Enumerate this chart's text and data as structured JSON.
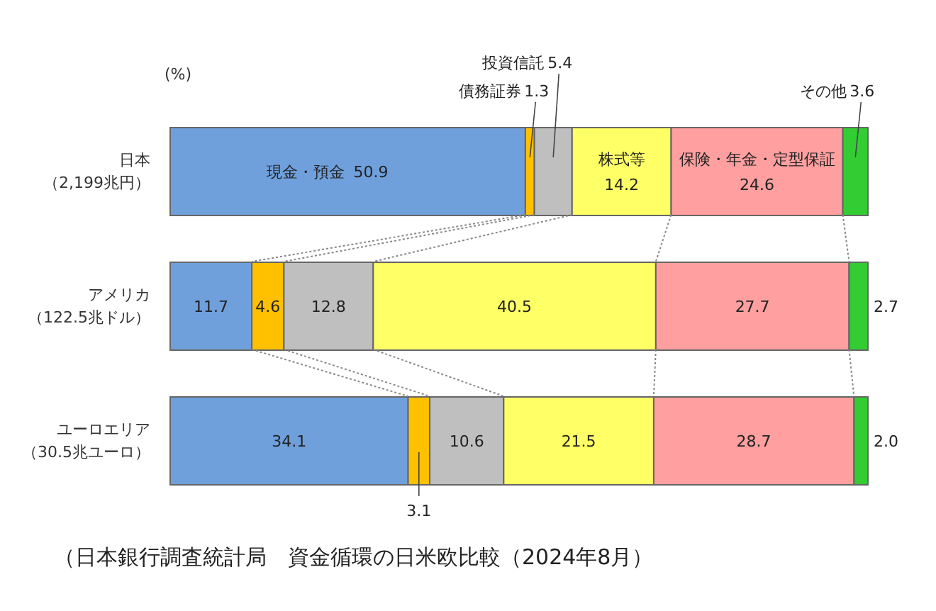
{
  "chart_data": {
    "type": "bar",
    "orientation": "horizontal",
    "stacked": true,
    "tick_labels": "y",
    "xlabel": "(%)",
    "categories": [
      "日本（2,199兆円）",
      "アメリカ（122.5兆ドル）",
      "ユーロエリア（30.5兆ユーロ）"
    ],
    "series": [
      {
        "name": "現金・預金",
        "color": "#6fa0dc",
        "values": [
          50.9,
          11.7,
          34.1
        ],
        "value_labels": [
          "50.9",
          "11.7",
          "34.1"
        ]
      },
      {
        "name": "債務証券",
        "color": "#ffc000",
        "values": [
          1.3,
          4.6,
          3.1
        ],
        "value_labels": [
          "1.3",
          "4.6",
          "3.1"
        ]
      },
      {
        "name": "投資信託",
        "color": "#bfbfbf",
        "values": [
          5.4,
          12.8,
          10.6
        ],
        "value_labels": [
          "5.4",
          "12.8",
          "10.6"
        ]
      },
      {
        "name": "株式等",
        "color": "#ffff66",
        "values": [
          14.2,
          40.5,
          21.5
        ],
        "value_labels": [
          "14.2",
          "40.5",
          "21.5"
        ]
      },
      {
        "name": "保険・年金・定型保証",
        "color": "#ff9f9f",
        "values": [
          24.6,
          27.7,
          28.7
        ],
        "value_labels": [
          "24.6",
          "27.7",
          "28.7"
        ]
      },
      {
        "name": "その他",
        "color": "#33cc33",
        "values": [
          3.6,
          2.7,
          2.0
        ],
        "value_labels": [
          "3.6",
          "2.7",
          "2.0"
        ]
      }
    ],
    "annotations": [
      "（日本銀行調査統計局　資金循環の日米欧比較（2024年8月）"
    ]
  }
}
